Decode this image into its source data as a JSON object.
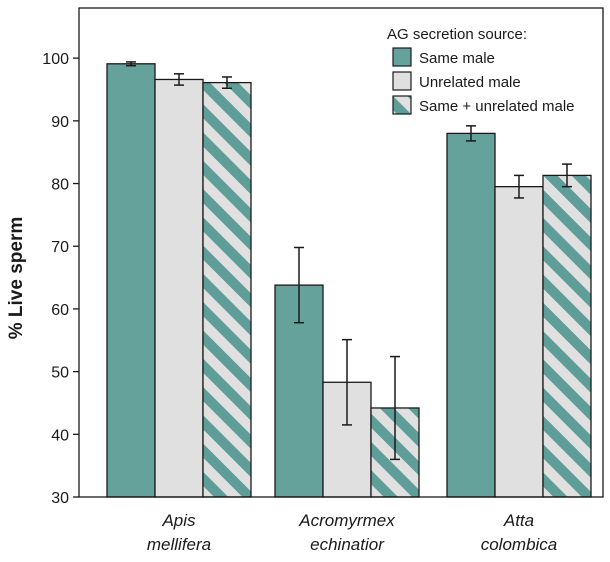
{
  "chart_data": {
    "type": "bar",
    "title": "",
    "ylabel": "% Live sperm",
    "xlabel": "",
    "ylim": [
      30,
      108
    ],
    "yticks": [
      30,
      40,
      50,
      60,
      70,
      80,
      90,
      100
    ],
    "grid": false,
    "legend_title": "AG secretion source:",
    "legend_position": "top-right",
    "categories": [
      {
        "line1": "Apis",
        "line2": "mellifera"
      },
      {
        "line1": "Acromyrmex",
        "line2": "echinatior"
      },
      {
        "line1": "Atta",
        "line2": "colombica"
      }
    ],
    "series": [
      {
        "name": "Same male",
        "values": [
          99.1,
          63.8,
          88.0
        ],
        "errors": [
          0.3,
          6.0,
          1.2
        ],
        "fill": "#66a29c",
        "pattern": "solid"
      },
      {
        "name": "Unrelated male",
        "values": [
          96.6,
          48.3,
          79.5
        ],
        "errors": [
          0.9,
          6.8,
          1.8
        ],
        "fill": "#e0e0e0",
        "pattern": "solid"
      },
      {
        "name": "Same + unrelated male",
        "values": [
          96.1,
          44.2,
          81.3
        ],
        "errors": [
          0.9,
          8.2,
          1.8
        ],
        "fill": "#e0e0e0",
        "stripe": "#5e9d98",
        "pattern": "striped"
      }
    ]
  }
}
